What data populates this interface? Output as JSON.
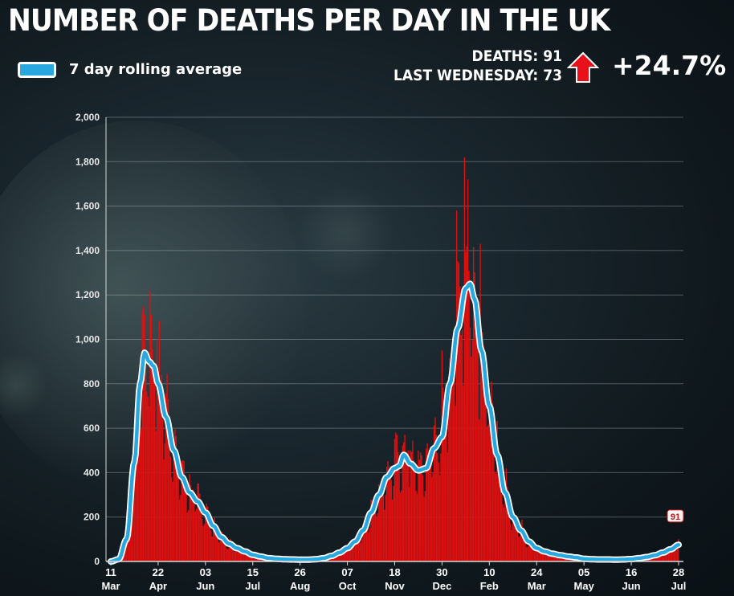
{
  "header": {
    "title": "NUMBER OF DEATHS PER DAY IN THE UK",
    "deaths_line": "DEATHS: 91",
    "last_wednesday_line": "LAST WEDNESDAY: 73",
    "change": "+24.7%",
    "arrow_icon": "red-up-arrow-icon"
  },
  "colors": {
    "bars": "#e01010",
    "average_line": "#29a8e0",
    "average_outline": "#ffffff",
    "arrow": "#e8101a"
  },
  "chart_data": {
    "type": "bar",
    "title": "NUMBER OF DEATHS PER DAY IN THE UK",
    "legend": [
      {
        "name": "7 day rolling average",
        "color": "#29a8e0"
      }
    ],
    "legend_placement": "top-left",
    "ylim": [
      0,
      2000
    ],
    "y_ticks": [
      "0",
      "200",
      "400",
      "600",
      "800",
      "1,000",
      "1,200",
      "1,400",
      "1,600",
      "1,800",
      "2,000"
    ],
    "y_tick_values": [
      0,
      200,
      400,
      600,
      800,
      1000,
      1200,
      1400,
      1600,
      1800,
      2000
    ],
    "grid": true,
    "x_start": "2020-03-11",
    "x_end": "2021-07-28",
    "x_ticks": [
      {
        "date": "2020-03-11",
        "day": "11",
        "month": "Mar"
      },
      {
        "date": "2020-04-22",
        "day": "22",
        "month": "Apr"
      },
      {
        "date": "2020-06-03",
        "day": "03",
        "month": "Jun"
      },
      {
        "date": "2020-07-15",
        "day": "15",
        "month": "Jul"
      },
      {
        "date": "2020-08-26",
        "day": "26",
        "month": "Aug"
      },
      {
        "date": "2020-10-07",
        "day": "07",
        "month": "Oct"
      },
      {
        "date": "2020-11-18",
        "day": "18",
        "month": "Nov"
      },
      {
        "date": "2020-12-30",
        "day": "30",
        "month": "Dec"
      },
      {
        "date": "2021-02-10",
        "day": "10",
        "month": "Feb"
      },
      {
        "date": "2021-03-24",
        "day": "24",
        "month": "Mar"
      },
      {
        "date": "2021-05-05",
        "day": "05",
        "month": "May"
      },
      {
        "date": "2021-06-16",
        "day": "16",
        "month": "Jun"
      },
      {
        "date": "2021-07-28",
        "day": "28",
        "month": "Jul"
      }
    ],
    "series": [
      {
        "name": "7 day rolling average",
        "points": [
          [
            "2020-03-11",
            0
          ],
          [
            "2020-03-18",
            10
          ],
          [
            "2020-03-25",
            100
          ],
          [
            "2020-04-01",
            450
          ],
          [
            "2020-04-06",
            800
          ],
          [
            "2020-04-10",
            940
          ],
          [
            "2020-04-14",
            900
          ],
          [
            "2020-04-18",
            880
          ],
          [
            "2020-04-22",
            800
          ],
          [
            "2020-04-29",
            650
          ],
          [
            "2020-05-06",
            500
          ],
          [
            "2020-05-13",
            380
          ],
          [
            "2020-05-20",
            310
          ],
          [
            "2020-05-27",
            270
          ],
          [
            "2020-06-03",
            220
          ],
          [
            "2020-06-10",
            160
          ],
          [
            "2020-06-17",
            110
          ],
          [
            "2020-06-24",
            80
          ],
          [
            "2020-07-01",
            60
          ],
          [
            "2020-07-08",
            45
          ],
          [
            "2020-07-15",
            30
          ],
          [
            "2020-07-22",
            22
          ],
          [
            "2020-07-29",
            15
          ],
          [
            "2020-08-05",
            12
          ],
          [
            "2020-08-12",
            10
          ],
          [
            "2020-08-19",
            9
          ],
          [
            "2020-08-26",
            8
          ],
          [
            "2020-09-02",
            8
          ],
          [
            "2020-09-09",
            10
          ],
          [
            "2020-09-16",
            15
          ],
          [
            "2020-09-23",
            25
          ],
          [
            "2020-09-30",
            40
          ],
          [
            "2020-10-07",
            60
          ],
          [
            "2020-10-14",
            90
          ],
          [
            "2020-10-21",
            140
          ],
          [
            "2020-10-28",
            220
          ],
          [
            "2020-11-04",
            300
          ],
          [
            "2020-11-11",
            380
          ],
          [
            "2020-11-18",
            420
          ],
          [
            "2020-11-22",
            430
          ],
          [
            "2020-11-26",
            480
          ],
          [
            "2020-12-02",
            440
          ],
          [
            "2020-12-09",
            410
          ],
          [
            "2020-12-16",
            420
          ],
          [
            "2020-12-23",
            510
          ],
          [
            "2020-12-30",
            560
          ],
          [
            "2021-01-06",
            800
          ],
          [
            "2021-01-13",
            1050
          ],
          [
            "2021-01-20",
            1230
          ],
          [
            "2021-01-24",
            1250
          ],
          [
            "2021-01-28",
            1180
          ],
          [
            "2021-02-03",
            950
          ],
          [
            "2021-02-10",
            700
          ],
          [
            "2021-02-17",
            480
          ],
          [
            "2021-02-24",
            310
          ],
          [
            "2021-03-03",
            200
          ],
          [
            "2021-03-10",
            140
          ],
          [
            "2021-03-17",
            90
          ],
          [
            "2021-03-24",
            60
          ],
          [
            "2021-03-31",
            45
          ],
          [
            "2021-04-07",
            35
          ],
          [
            "2021-04-14",
            28
          ],
          [
            "2021-04-21",
            22
          ],
          [
            "2021-04-28",
            18
          ],
          [
            "2021-05-05",
            12
          ],
          [
            "2021-05-12",
            10
          ],
          [
            "2021-05-19",
            9
          ],
          [
            "2021-05-26",
            9
          ],
          [
            "2021-06-02",
            8
          ],
          [
            "2021-06-09",
            9
          ],
          [
            "2021-06-16",
            11
          ],
          [
            "2021-06-23",
            15
          ],
          [
            "2021-06-30",
            20
          ],
          [
            "2021-07-07",
            28
          ],
          [
            "2021-07-14",
            40
          ],
          [
            "2021-07-21",
            55
          ],
          [
            "2021-07-28",
            75
          ]
        ]
      }
    ],
    "daily_bar_peaks": [
      [
        "2020-04-08",
        1120
      ],
      [
        "2020-04-15",
        1220
      ],
      [
        "2020-04-21",
        1000
      ],
      [
        "2020-11-20",
        570
      ],
      [
        "2020-11-30",
        500
      ],
      [
        "2020-12-30",
        950
      ],
      [
        "2021-01-12",
        1580
      ],
      [
        "2021-01-19",
        1820
      ],
      [
        "2021-01-22",
        1720
      ],
      [
        "2021-02-02",
        1430
      ]
    ],
    "annotations": [
      {
        "date": "2021-07-28",
        "value": 91,
        "label": "91"
      }
    ]
  }
}
